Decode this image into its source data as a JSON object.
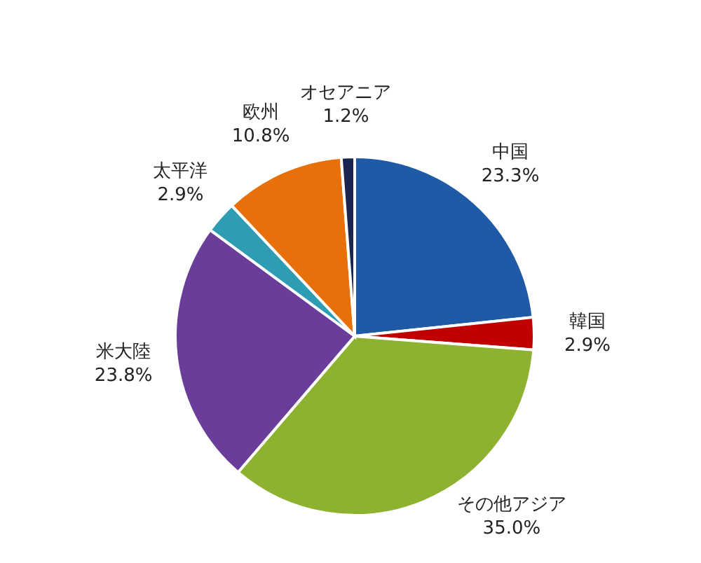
{
  "chart_data": {
    "type": "pie",
    "categories": [
      "中国",
      "韓国",
      "その他アジア",
      "米大陸",
      "太平洋",
      "欧州",
      "オセアニア"
    ],
    "values": [
      23.3,
      2.9,
      35.0,
      23.8,
      2.9,
      10.8,
      1.2
    ],
    "colors": [
      "#1f5aa6",
      "#c00000",
      "#8db230",
      "#6a3d9a",
      "#2e9db3",
      "#e8700a",
      "#1a2550"
    ],
    "value_labels": [
      "23.3%",
      "2.9%",
      "35.0%",
      "23.8%",
      "2.9%",
      "10.8%",
      "1.2%"
    ],
    "legend": false
  }
}
